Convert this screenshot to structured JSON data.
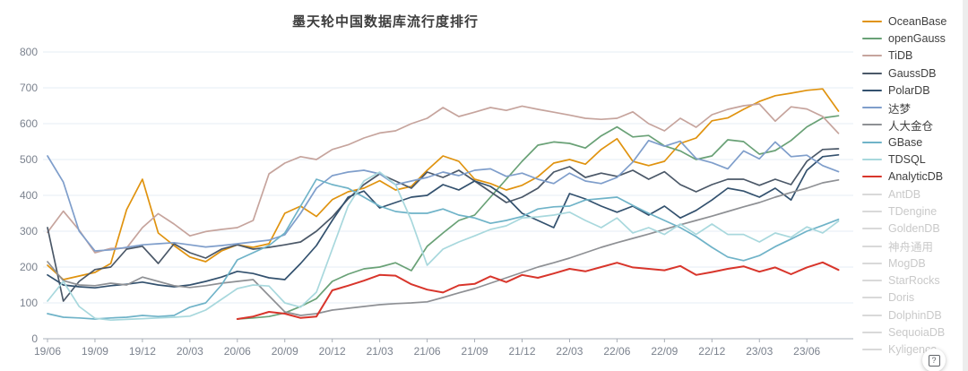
{
  "page": {
    "right_strip_color": "#ededed",
    "help_icon_glyph": "?"
  },
  "chart_data": {
    "type": "line",
    "title": "墨天轮中国数据库流行度排行",
    "xlabel": "",
    "ylabel": "",
    "ylim": [
      0,
      800
    ],
    "y_ticks": [
      0,
      100,
      200,
      300,
      400,
      500,
      600,
      700,
      800
    ],
    "grid": true,
    "legend_position": "right",
    "months_start": "2019-06",
    "months_step": "monthly",
    "x_tick_labels": [
      "19/06",
      "19/09",
      "19/12",
      "20/03",
      "20/06",
      "20/09",
      "20/12",
      "21/03",
      "21/06",
      "21/09",
      "21/12",
      "22/03",
      "22/06",
      "22/09",
      "22/12",
      "23/03",
      "23/06"
    ],
    "style": {
      "grid_color": "#e6edf4",
      "axis_color": "#a9afb8",
      "tick_label_color": "#7b828e",
      "disabled_legend_color": "#c9c9c9"
    },
    "series": [
      {
        "name": "OceanBase",
        "color": "#e0930f",
        "active": true,
        "values": [
          205,
          165,
          175,
          185,
          210,
          360,
          445,
          295,
          260,
          228,
          215,
          245,
          262,
          255,
          265,
          350,
          370,
          341,
          388,
          410,
          420,
          441,
          415,
          425,
          470,
          510,
          495,
          445,
          433,
          415,
          428,
          452,
          490,
          500,
          487,
          528,
          558,
          495,
          483,
          495,
          545,
          560,
          608,
          616,
          640,
          662,
          678,
          685,
          693,
          697,
          635
        ]
      },
      {
        "name": "openGauss",
        "color": "#69a176",
        "active": true,
        "values": [
          null,
          null,
          null,
          null,
          null,
          null,
          null,
          null,
          null,
          null,
          null,
          null,
          55,
          58,
          62,
          72,
          90,
          112,
          160,
          180,
          195,
          200,
          212,
          190,
          258,
          295,
          330,
          345,
          395,
          445,
          495,
          540,
          549,
          545,
          532,
          566,
          591,
          563,
          567,
          538,
          524,
          500,
          510,
          555,
          550,
          515,
          525,
          553,
          591,
          616,
          622
        ]
      },
      {
        "name": "TiDB",
        "color": "#c6a49d",
        "active": true,
        "values": [
          297,
          356,
          303,
          240,
          252,
          253,
          310,
          349,
          320,
          287,
          299,
          305,
          310,
          330,
          460,
          490,
          508,
          500,
          528,
          541,
          560,
          574,
          580,
          600,
          615,
          645,
          620,
          632,
          645,
          637,
          649,
          640,
          632,
          624,
          615,
          612,
          615,
          633,
          600,
          580,
          615,
          590,
          625,
          640,
          650,
          655,
          607,
          647,
          641,
          620,
          573
        ]
      },
      {
        "name": "GaussDB",
        "color": "#4b5868",
        "active": true,
        "values": [
          310,
          105,
          160,
          193,
          200,
          250,
          258,
          210,
          265,
          240,
          225,
          250,
          262,
          250,
          255,
          262,
          270,
          300,
          340,
          390,
          430,
          460,
          440,
          420,
          465,
          450,
          470,
          440,
          410,
          380,
          395,
          420,
          465,
          480,
          450,
          462,
          453,
          470,
          445,
          466,
          430,
          410,
          430,
          445,
          445,
          428,
          445,
          430,
          495,
          528,
          530
        ]
      },
      {
        "name": "PolarDB",
        "color": "#33516e",
        "active": true,
        "values": [
          178,
          150,
          145,
          142,
          148,
          152,
          158,
          150,
          145,
          150,
          160,
          172,
          188,
          182,
          170,
          165,
          210,
          260,
          330,
          395,
          412,
          365,
          380,
          395,
          400,
          430,
          415,
          440,
          425,
          395,
          350,
          330,
          310,
          405,
          390,
          370,
          353,
          370,
          345,
          370,
          337,
          358,
          387,
          420,
          412,
          395,
          420,
          387,
          470,
          508,
          513
        ]
      },
      {
        "name": "达梦",
        "color": "#7f9ecb",
        "active": true,
        "values": [
          510,
          437,
          300,
          245,
          248,
          255,
          262,
          265,
          268,
          262,
          256,
          260,
          265,
          270,
          275,
          290,
          350,
          420,
          455,
          465,
          470,
          460,
          430,
          440,
          450,
          465,
          455,
          470,
          474,
          453,
          462,
          445,
          433,
          462,
          440,
          433,
          450,
          493,
          553,
          537,
          551,
          503,
          491,
          474,
          524,
          502,
          549,
          508,
          512,
          483,
          466
        ]
      },
      {
        "name": "人大金仓",
        "color": "#8e9094",
        "active": true,
        "values": [
          215,
          162,
          150,
          148,
          155,
          150,
          172,
          160,
          148,
          143,
          148,
          155,
          160,
          165,
          120,
          75,
          65,
          70,
          80,
          85,
          90,
          95,
          98,
          100,
          103,
          115,
          128,
          140,
          155,
          170,
          185,
          200,
          212,
          225,
          240,
          255,
          268,
          280,
          292,
          305,
          318,
          330,
          342,
          355,
          368,
          380,
          395,
          408,
          420,
          435,
          443
        ]
      },
      {
        "name": "GBase",
        "color": "#6fb3c8",
        "active": true,
        "values": [
          70,
          60,
          58,
          55,
          58,
          60,
          65,
          62,
          65,
          88,
          100,
          150,
          220,
          240,
          260,
          295,
          370,
          445,
          430,
          420,
          395,
          370,
          355,
          350,
          350,
          362,
          345,
          337,
          322,
          330,
          341,
          362,
          368,
          370,
          387,
          391,
          395,
          372,
          350,
          330,
          310,
          285,
          255,
          228,
          218,
          232,
          257,
          278,
          300,
          316,
          333
        ]
      },
      {
        "name": "TDSQL",
        "color": "#a8d8dd",
        "active": true,
        "values": [
          105,
          160,
          90,
          57,
          52,
          54,
          56,
          58,
          60,
          63,
          80,
          110,
          140,
          150,
          147,
          100,
          88,
          130,
          250,
          370,
          440,
          465,
          430,
          330,
          205,
          250,
          270,
          287,
          305,
          315,
          337,
          340,
          345,
          353,
          330,
          310,
          337,
          295,
          310,
          291,
          320,
          291,
          320,
          291,
          291,
          270,
          295,
          283,
          312,
          295,
          328
        ]
      },
      {
        "name": "AnalyticDB",
        "color": "#d8352b",
        "active": true,
        "values": [
          null,
          null,
          null,
          null,
          null,
          null,
          null,
          null,
          null,
          null,
          null,
          null,
          55,
          62,
          75,
          70,
          58,
          62,
          135,
          148,
          162,
          178,
          176,
          152,
          137,
          129,
          149,
          153,
          174,
          158,
          178,
          170,
          182,
          195,
          188,
          200,
          212,
          199,
          195,
          191,
          203,
          178,
          186,
          195,
          202,
          187,
          199,
          180,
          199,
          213,
          192
        ]
      },
      {
        "name": "AntDB",
        "color": "#d9d9d9",
        "active": false,
        "values": null
      },
      {
        "name": "TDengine",
        "color": "#d9d9d9",
        "active": false,
        "values": null
      },
      {
        "name": "GoldenDB",
        "color": "#d9d9d9",
        "active": false,
        "values": null
      },
      {
        "name": "神舟通用",
        "color": "#d9d9d9",
        "active": false,
        "values": null
      },
      {
        "name": "MogDB",
        "color": "#d9d9d9",
        "active": false,
        "values": null
      },
      {
        "name": "StarRocks",
        "color": "#d9d9d9",
        "active": false,
        "values": null
      },
      {
        "name": "Doris",
        "color": "#d9d9d9",
        "active": false,
        "values": null
      },
      {
        "name": "DolphinDB",
        "color": "#d9d9d9",
        "active": false,
        "values": null
      },
      {
        "name": "SequoiaDB",
        "color": "#d9d9d9",
        "active": false,
        "values": null
      },
      {
        "name": "Kyligence",
        "color": "#d9d9d9",
        "active": false,
        "values": null
      }
    ]
  }
}
